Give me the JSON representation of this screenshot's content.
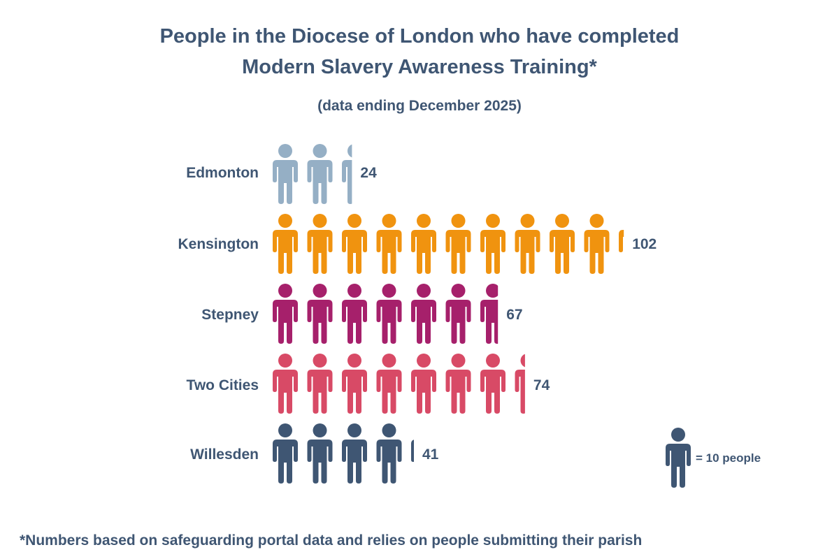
{
  "chart_data": {
    "type": "pictogram",
    "title_line1": "People in the Diocese of London who have completed",
    "title_line2": "Modern Slavery Awareness Training*",
    "subtitle": "(data ending December 2025)",
    "unit_value": 10,
    "legend": "= 10 people",
    "footnote": "*Numbers based on safeguarding portal data and relies on people submitting their parish",
    "categories": [
      "Edmonton",
      "Kensington",
      "Stepney",
      "Two Cities",
      "Willesden"
    ],
    "values": [
      24,
      102,
      67,
      74,
      41
    ],
    "value_labels": [
      "24",
      "102",
      "67",
      "74",
      "41"
    ],
    "colors": [
      "#95afc5",
      "#f0930f",
      "#a6206b",
      "#d84a66",
      "#3f5673"
    ]
  }
}
